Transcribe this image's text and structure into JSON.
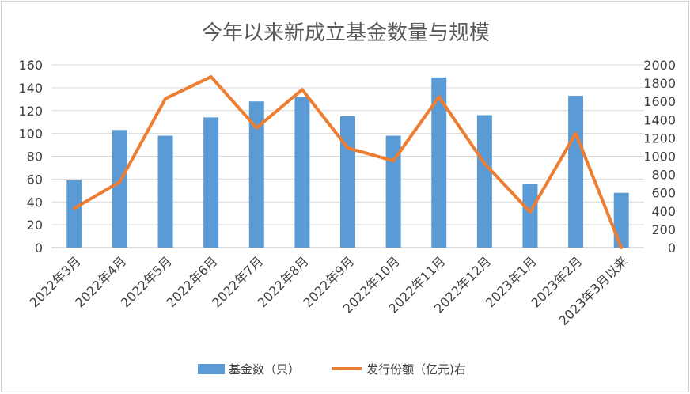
{
  "chart_data": {
    "type": "bar+line",
    "title": "今年以来新成立基金数量与规模",
    "categories": [
      "2022年3月",
      "2022年4月",
      "2022年5月",
      "2022年6月",
      "2022年7月",
      "2022年8月",
      "2022年9月",
      "2022年10月",
      "2022年11月",
      "2022年12月",
      "2023年1月",
      "2023年2月",
      "2023年3月以来"
    ],
    "series": [
      {
        "name": "基金数（只）",
        "type": "bar",
        "axis": "left",
        "color": "#5B9BD5",
        "values": [
          59,
          103,
          98,
          114,
          128,
          132,
          115,
          98,
          149,
          116,
          56,
          133,
          48
        ]
      },
      {
        "name": "发行份额（亿元)右",
        "type": "line",
        "axis": "right",
        "color": "#ED7D31",
        "values": [
          430,
          720,
          1630,
          1870,
          1310,
          1730,
          1090,
          950,
          1650,
          920,
          390,
          1250,
          0
        ]
      }
    ],
    "y_left": {
      "min": 0,
      "max": 160,
      "ticks": [
        "0",
        "20",
        "40",
        "60",
        "80",
        "100",
        "120",
        "140",
        "160"
      ]
    },
    "y_right": {
      "min": 0,
      "max": 2000,
      "ticks": [
        "0",
        "200",
        "400",
        "600",
        "800",
        "1000",
        "1200",
        "1400",
        "1600",
        "1800",
        "2000"
      ]
    },
    "grid": true,
    "legend_position": "bottom"
  }
}
